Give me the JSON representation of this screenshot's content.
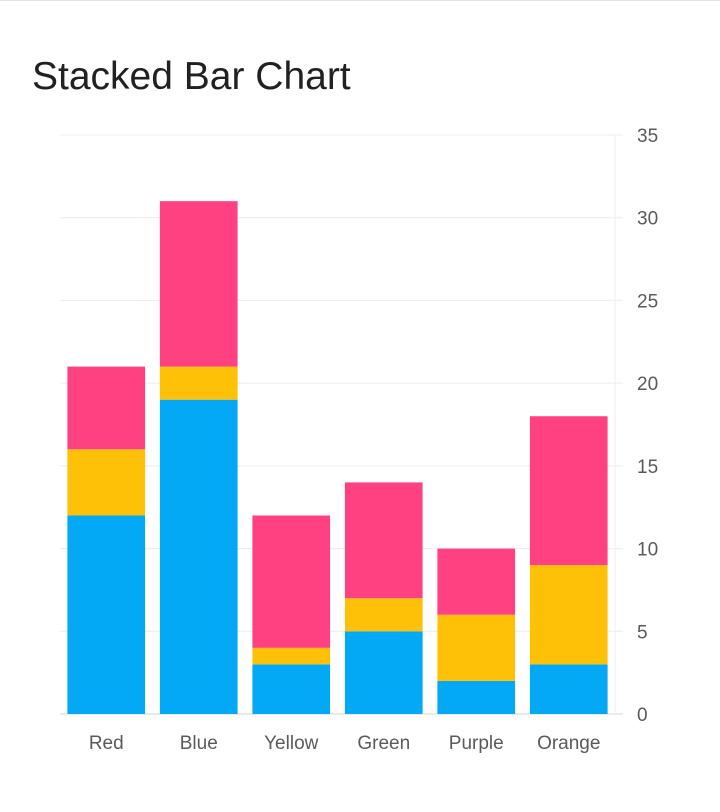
{
  "chart_data": {
    "type": "bar",
    "stacked": true,
    "title": "Stacked Bar Chart",
    "xlabel": "",
    "ylabel": "",
    "categories": [
      "Red",
      "Blue",
      "Yellow",
      "Green",
      "Purple",
      "Orange"
    ],
    "series": [
      {
        "values": [
          12,
          19,
          3,
          5,
          2,
          3
        ],
        "color": "#03a9f4"
      },
      {
        "values": [
          4,
          2,
          1,
          2,
          4,
          6
        ],
        "color": "#ffc107"
      },
      {
        "values": [
          5,
          10,
          8,
          7,
          4,
          9
        ],
        "color": "#ff4081"
      }
    ],
    "ylim": [
      0,
      35
    ],
    "yticks": [
      0,
      5,
      10,
      15,
      20,
      25,
      30,
      35
    ],
    "y_axis_position": "right",
    "grid": true,
    "legend": "none"
  }
}
